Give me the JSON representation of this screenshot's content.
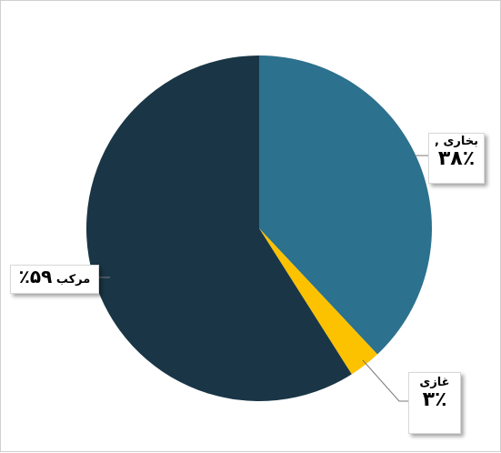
{
  "chart_data": {
    "type": "pie",
    "title": "",
    "slices": [
      {
        "name": "بخاری",
        "value": 38,
        "label_name": "بخاری ,",
        "label_value": "۳۸٪",
        "color": "#2c718e"
      },
      {
        "name": "غازی",
        "value": 3,
        "label_name": "غازی",
        "label_value": "۳٪",
        "color": "#fcc200"
      },
      {
        "name": "مرکب",
        "value": 59,
        "label_name": "مرکب",
        "label_value": "۵۹٪",
        "color": "#1a3646"
      }
    ],
    "start_angle": "12 o'clock",
    "direction": "clockwise",
    "legend": "none"
  }
}
